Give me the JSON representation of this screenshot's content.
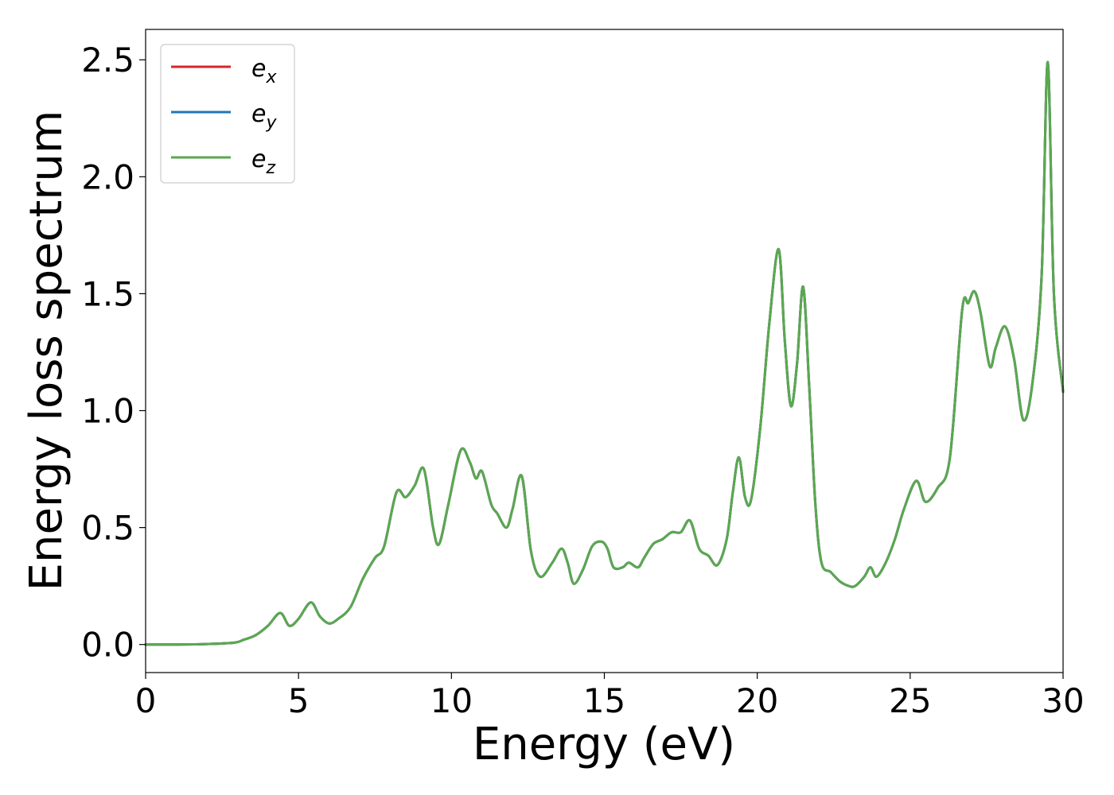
{
  "chart_data": {
    "type": "line",
    "title": "",
    "xlabel": "Energy (eV)",
    "ylabel": "Energy loss spectrum",
    "xlim": [
      0,
      30
    ],
    "ylim": [
      -0.12,
      2.63
    ],
    "grid": false,
    "legend_placement": "top-left",
    "x_ticks": [
      0,
      5,
      10,
      15,
      20,
      25,
      30
    ],
    "x_tick_labels": [
      "0",
      "5",
      "10",
      "15",
      "20",
      "25",
      "30"
    ],
    "y_ticks": [
      0.0,
      0.5,
      1.0,
      1.5,
      2.0,
      2.5
    ],
    "y_tick_labels": [
      "0.0",
      "0.5",
      "1.0",
      "1.5",
      "2.0",
      "2.5"
    ],
    "x": [
      0,
      1,
      2,
      2.9,
      3.2,
      3.6,
      4.0,
      4.4,
      4.7,
      5.0,
      5.4,
      5.7,
      6.0,
      6.3,
      6.7,
      7.1,
      7.5,
      7.8,
      8.2,
      8.5,
      8.8,
      9.1,
      9.4,
      9.6,
      9.9,
      10.3,
      10.6,
      10.8,
      11.0,
      11.3,
      11.5,
      11.8,
      12.0,
      12.3,
      12.6,
      12.9,
      13.3,
      13.6,
      13.8,
      14.0,
      14.3,
      14.6,
      14.9,
      15.1,
      15.3,
      15.6,
      15.8,
      16.1,
      16.3,
      16.6,
      16.9,
      17.2,
      17.5,
      17.8,
      18.1,
      18.4,
      18.7,
      19.0,
      19.2,
      19.4,
      19.6,
      19.8,
      20.1,
      20.4,
      20.7,
      20.9,
      21.1,
      21.3,
      21.5,
      21.7,
      21.9,
      22.1,
      22.4,
      22.7,
      23.0,
      23.2,
      23.5,
      23.7,
      23.9,
      24.2,
      24.5,
      24.8,
      25.2,
      25.5,
      25.9,
      26.3,
      26.7,
      26.9,
      27.1,
      27.3,
      27.6,
      27.8,
      28.1,
      28.4,
      28.7,
      29.0,
      29.3,
      29.5,
      29.7,
      30.0
    ],
    "series": [
      {
        "name": "e_x",
        "color": "#d62728",
        "values": [
          0.0,
          0.0,
          0.002,
          0.008,
          0.02,
          0.04,
          0.08,
          0.135,
          0.08,
          0.11,
          0.18,
          0.12,
          0.09,
          0.11,
          0.16,
          0.28,
          0.37,
          0.42,
          0.65,
          0.63,
          0.68,
          0.75,
          0.5,
          0.43,
          0.6,
          0.83,
          0.78,
          0.71,
          0.74,
          0.6,
          0.56,
          0.5,
          0.58,
          0.72,
          0.4,
          0.29,
          0.35,
          0.41,
          0.35,
          0.26,
          0.32,
          0.42,
          0.44,
          0.41,
          0.33,
          0.33,
          0.35,
          0.33,
          0.37,
          0.43,
          0.45,
          0.48,
          0.48,
          0.53,
          0.41,
          0.38,
          0.34,
          0.45,
          0.65,
          0.8,
          0.63,
          0.62,
          0.93,
          1.38,
          1.69,
          1.3,
          1.02,
          1.2,
          1.53,
          1.1,
          0.6,
          0.35,
          0.31,
          0.27,
          0.25,
          0.25,
          0.29,
          0.33,
          0.29,
          0.35,
          0.45,
          0.58,
          0.7,
          0.61,
          0.67,
          0.8,
          1.43,
          1.46,
          1.51,
          1.42,
          1.19,
          1.27,
          1.36,
          1.22,
          0.96,
          1.12,
          1.58,
          2.49,
          1.5,
          1.08
        ]
      },
      {
        "name": "e_y",
        "color": "#1f77b4",
        "values": [
          0.0,
          0.0,
          0.002,
          0.008,
          0.02,
          0.04,
          0.08,
          0.135,
          0.08,
          0.11,
          0.18,
          0.12,
          0.09,
          0.11,
          0.16,
          0.28,
          0.37,
          0.42,
          0.65,
          0.63,
          0.68,
          0.75,
          0.5,
          0.43,
          0.6,
          0.83,
          0.78,
          0.71,
          0.74,
          0.6,
          0.56,
          0.5,
          0.58,
          0.72,
          0.4,
          0.29,
          0.35,
          0.41,
          0.35,
          0.26,
          0.32,
          0.42,
          0.44,
          0.41,
          0.33,
          0.33,
          0.35,
          0.33,
          0.37,
          0.43,
          0.45,
          0.48,
          0.48,
          0.53,
          0.41,
          0.38,
          0.34,
          0.45,
          0.65,
          0.8,
          0.63,
          0.62,
          0.93,
          1.38,
          1.69,
          1.3,
          1.02,
          1.2,
          1.53,
          1.1,
          0.6,
          0.35,
          0.31,
          0.27,
          0.25,
          0.25,
          0.29,
          0.33,
          0.29,
          0.35,
          0.45,
          0.58,
          0.7,
          0.61,
          0.67,
          0.8,
          1.43,
          1.46,
          1.51,
          1.42,
          1.19,
          1.27,
          1.36,
          1.22,
          0.96,
          1.12,
          1.58,
          2.49,
          1.5,
          1.08
        ]
      },
      {
        "name": "e_z",
        "color": "#5aa84f",
        "values": [
          0.0,
          0.0,
          0.002,
          0.008,
          0.02,
          0.04,
          0.08,
          0.135,
          0.08,
          0.11,
          0.18,
          0.12,
          0.09,
          0.11,
          0.16,
          0.28,
          0.37,
          0.42,
          0.65,
          0.63,
          0.68,
          0.75,
          0.5,
          0.43,
          0.6,
          0.83,
          0.78,
          0.71,
          0.74,
          0.6,
          0.56,
          0.5,
          0.58,
          0.72,
          0.4,
          0.29,
          0.35,
          0.41,
          0.35,
          0.26,
          0.32,
          0.42,
          0.44,
          0.41,
          0.33,
          0.33,
          0.35,
          0.33,
          0.37,
          0.43,
          0.45,
          0.48,
          0.48,
          0.53,
          0.41,
          0.38,
          0.34,
          0.45,
          0.65,
          0.8,
          0.63,
          0.62,
          0.93,
          1.38,
          1.69,
          1.3,
          1.02,
          1.2,
          1.53,
          1.1,
          0.6,
          0.35,
          0.31,
          0.27,
          0.25,
          0.25,
          0.29,
          0.33,
          0.29,
          0.35,
          0.45,
          0.58,
          0.7,
          0.61,
          0.67,
          0.8,
          1.43,
          1.46,
          1.51,
          1.42,
          1.19,
          1.27,
          1.36,
          1.22,
          0.96,
          1.12,
          1.58,
          2.49,
          1.5,
          1.08
        ]
      }
    ],
    "legend": [
      {
        "base": "e",
        "sub": "x",
        "color": "#d62728"
      },
      {
        "base": "e",
        "sub": "y",
        "color": "#1f77b4"
      },
      {
        "base": "e",
        "sub": "z",
        "color": "#5aa84f"
      }
    ]
  }
}
